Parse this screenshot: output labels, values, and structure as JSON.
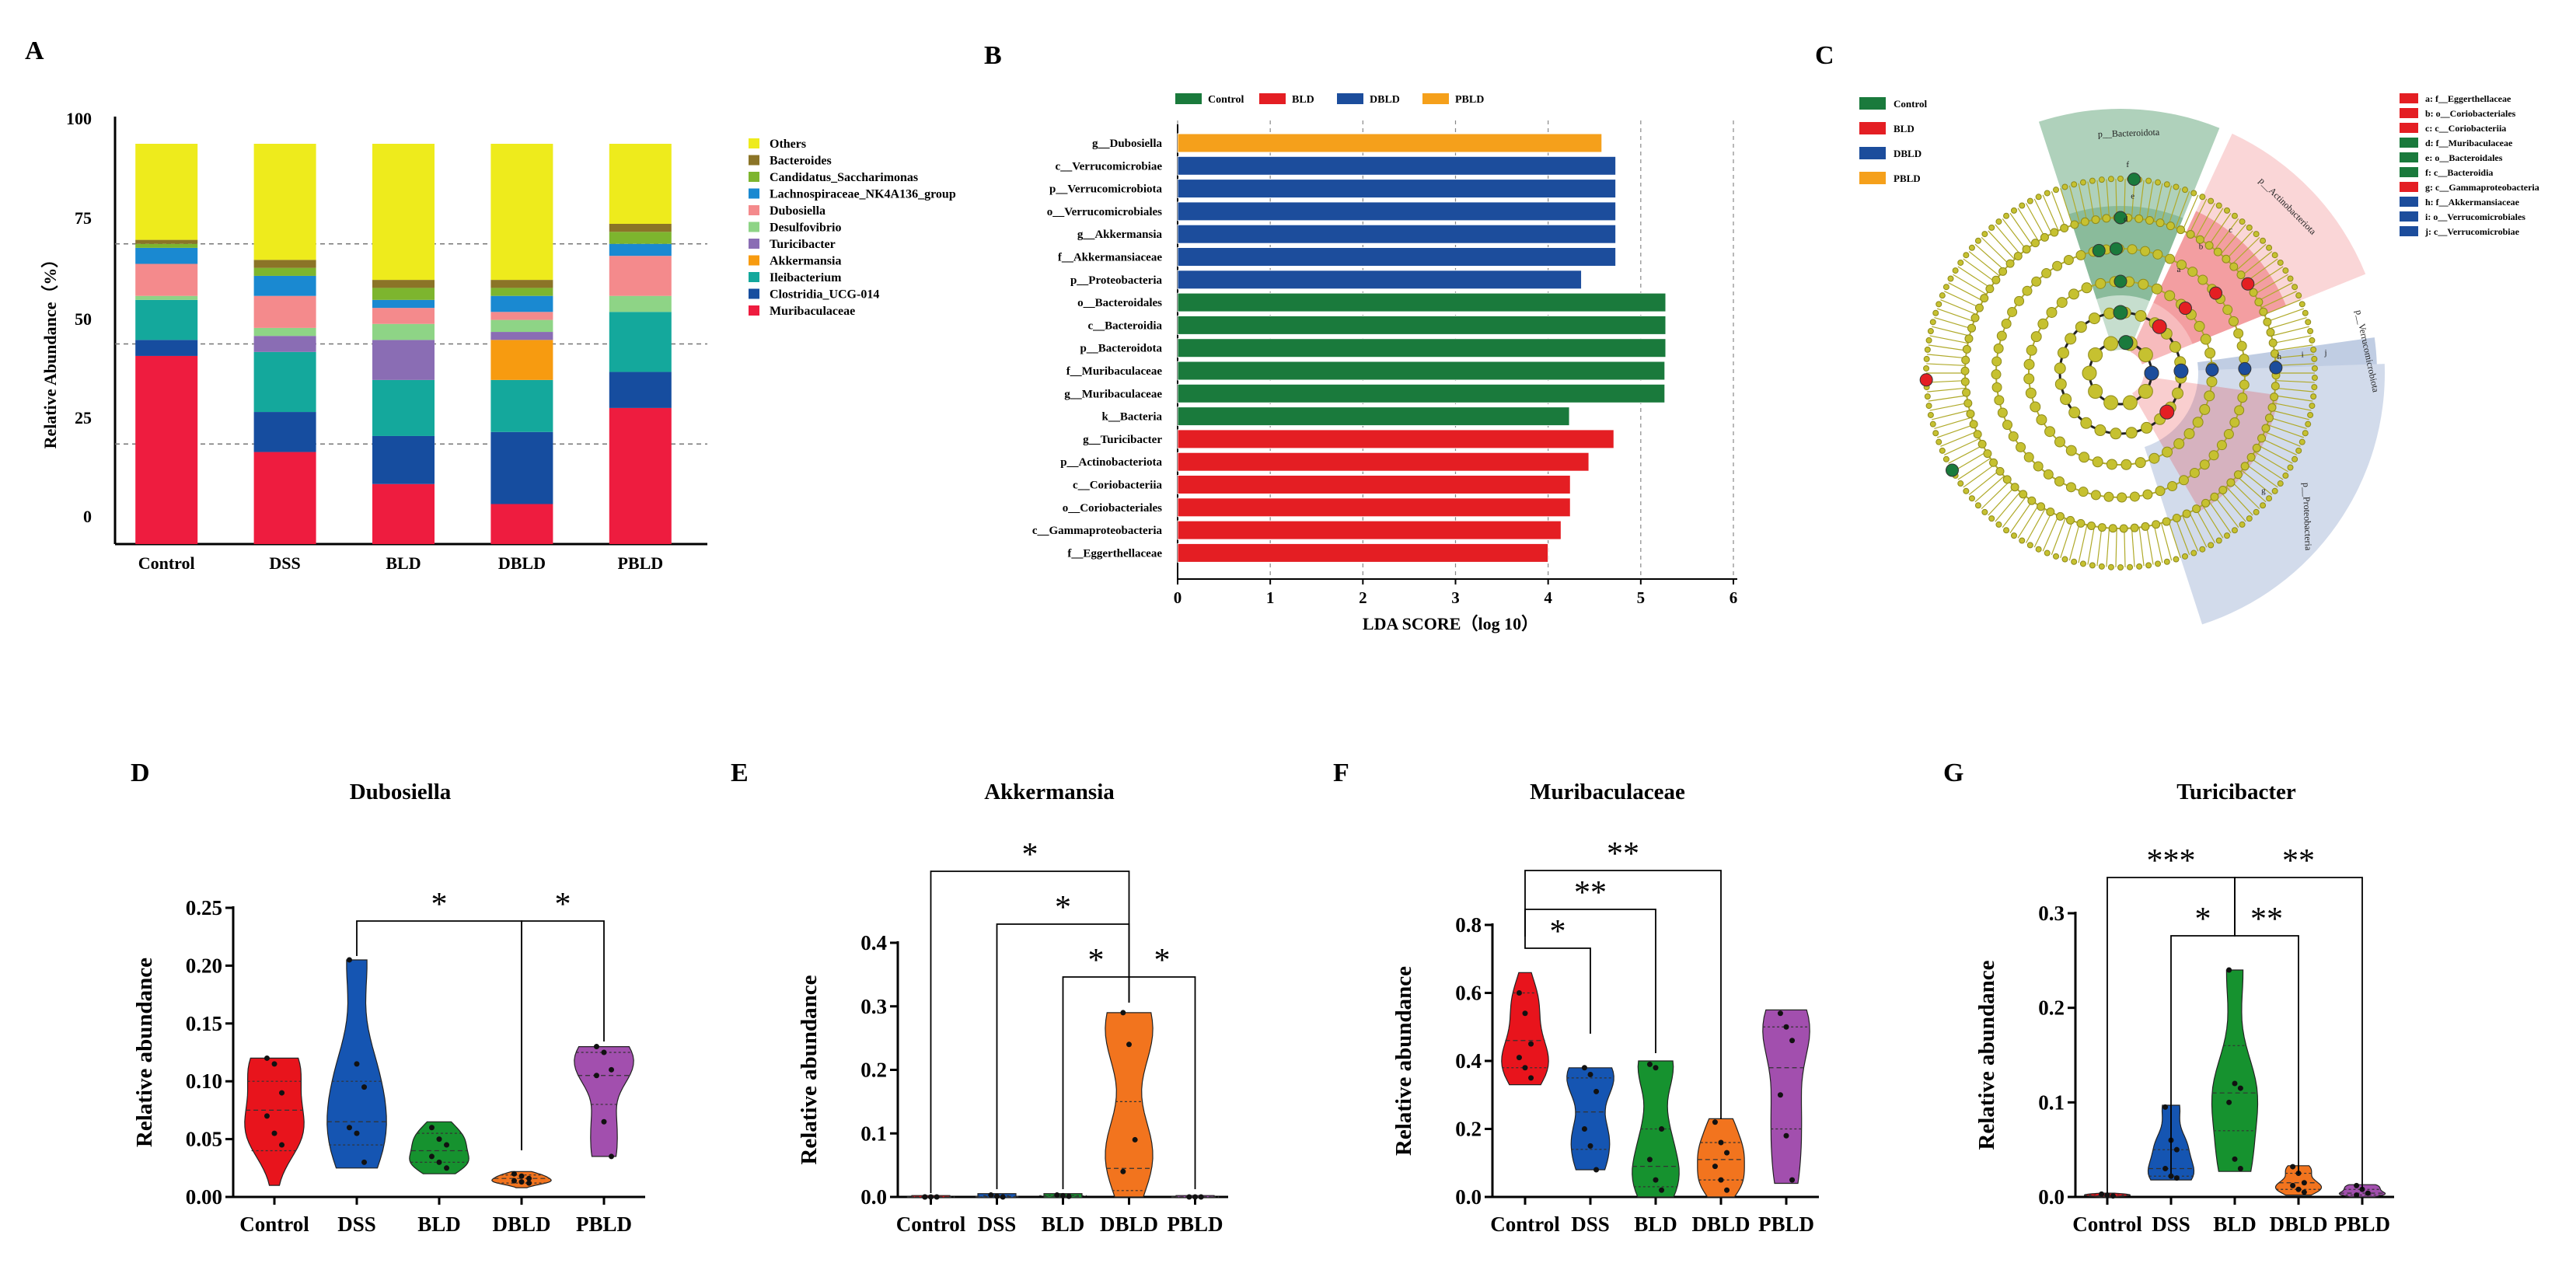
{
  "chart_data": [
    {
      "id": "A",
      "type": "stacked-bar",
      "panel_label": "A",
      "ylabel": "Relative Abundance（%）",
      "yticks": [
        0,
        25,
        50,
        75,
        100
      ],
      "ylim": [
        0,
        100
      ],
      "categories": [
        "Control",
        "DSS",
        "BLD",
        "DBLD",
        "PBLD"
      ],
      "series": [
        {
          "name": "Muribaculaceae",
          "color": "#EE1C3F",
          "values": [
            47,
            23,
            15,
            10,
            34
          ]
        },
        {
          "name": "Clostridia_UCG-014",
          "color": "#164D9F",
          "values": [
            4,
            10,
            12,
            18,
            9
          ]
        },
        {
          "name": "Ileibacterium",
          "color": "#14A89C",
          "values": [
            10,
            15,
            14,
            13,
            15
          ]
        },
        {
          "name": "Akkermansia",
          "color": "#F79B10",
          "values": [
            0,
            0,
            0,
            10,
            0
          ]
        },
        {
          "name": "Turicibacter",
          "color": "#8A6DB4",
          "values": [
            0,
            4,
            10,
            2,
            0
          ]
        },
        {
          "name": "Desulfovibrio",
          "color": "#8ED486",
          "values": [
            1,
            2,
            4,
            3,
            4
          ]
        },
        {
          "name": "Dubosiella",
          "color": "#F48A8C",
          "values": [
            8,
            8,
            4,
            2,
            10
          ]
        },
        {
          "name": "Lachnospiraceae_NK4A136_group",
          "color": "#1A89D1",
          "values": [
            4,
            5,
            2,
            4,
            3
          ]
        },
        {
          "name": "Candidatus_Saccharimonas",
          "color": "#7DB52E",
          "values": [
            1,
            2,
            3,
            2,
            3
          ]
        },
        {
          "name": "Bacteroides",
          "color": "#8B7427",
          "values": [
            1,
            2,
            2,
            2,
            2
          ]
        },
        {
          "name": "Others",
          "color": "#EEEB1C",
          "values": [
            24,
            29,
            34,
            34,
            20
          ]
        }
      ]
    },
    {
      "id": "B",
      "type": "horizontal-bar",
      "panel_label": "B",
      "xlabel": "LDA SCORE（log 10）",
      "xticks": [
        0,
        1,
        2,
        3,
        4,
        5,
        6
      ],
      "xlim": [
        0,
        6
      ],
      "legend": [
        {
          "name": "Control",
          "color": "#1A7A3C"
        },
        {
          "name": "BLD",
          "color": "#E41E23"
        },
        {
          "name": "DBLD",
          "color": "#1C4D9C"
        },
        {
          "name": "PBLD",
          "color": "#F5A01B"
        }
      ],
      "bars": [
        {
          "label": "g__Dubosiella",
          "value": 4.58,
          "group": "PBLD"
        },
        {
          "label": "c__Verrucomicrobiae",
          "value": 4.73,
          "group": "DBLD"
        },
        {
          "label": "p__Verrucomicrobiota",
          "value": 4.73,
          "group": "DBLD"
        },
        {
          "label": "o__Verrucomicrobiales",
          "value": 4.73,
          "group": "DBLD"
        },
        {
          "label": "g__Akkermansia",
          "value": 4.73,
          "group": "DBLD"
        },
        {
          "label": "f__Akkermansiaceae",
          "value": 4.73,
          "group": "DBLD"
        },
        {
          "label": "p__Proteobacteria",
          "value": 4.36,
          "group": "DBLD"
        },
        {
          "label": "o__Bacteroidales",
          "value": 5.27,
          "group": "Control"
        },
        {
          "label": "c__Bacteroidia",
          "value": 5.27,
          "group": "Control"
        },
        {
          "label": "p__Bacteroidota",
          "value": 5.27,
          "group": "Control"
        },
        {
          "label": "f__Muribaculaceae",
          "value": 5.26,
          "group": "Control"
        },
        {
          "label": "g__Muribaculaceae",
          "value": 5.26,
          "group": "Control"
        },
        {
          "label": "k__Bacteria",
          "value": 4.23,
          "group": "Control"
        },
        {
          "label": "g__Turicibacter",
          "value": 4.71,
          "group": "BLD"
        },
        {
          "label": "p__Actinobacteriota",
          "value": 4.44,
          "group": "BLD"
        },
        {
          "label": "c__Coriobacteriia",
          "value": 4.24,
          "group": "BLD"
        },
        {
          "label": "o__Coriobacteriales",
          "value": 4.24,
          "group": "BLD"
        },
        {
          "label": "c__Gammaproteobacteria",
          "value": 4.14,
          "group": "BLD"
        },
        {
          "label": "f__Eggerthellaceae",
          "value": 4.0,
          "group": "BLD"
        }
      ]
    },
    {
      "id": "C",
      "type": "cladogram",
      "panel_label": "C",
      "legend": [
        {
          "name": "Control",
          "color": "#1A7A3C"
        },
        {
          "name": "BLD",
          "color": "#E41E23"
        },
        {
          "name": "DBLD",
          "color": "#1C4D9C"
        },
        {
          "name": "PBLD",
          "color": "#F5A01B"
        }
      ],
      "clade_labels": [
        {
          "text": "a: f__Eggerthellaceae",
          "color": "#E41E23"
        },
        {
          "text": "b: o__Coriobacteriales",
          "color": "#E41E23"
        },
        {
          "text": "c: c__Coriobacteriia",
          "color": "#E41E23"
        },
        {
          "text": "d: f__Muribaculaceae",
          "color": "#1A7A3C"
        },
        {
          "text": "e: o__Bacteroidales",
          "color": "#1A7A3C"
        },
        {
          "text": "f: c__Bacteroidia",
          "color": "#1A7A3C"
        },
        {
          "text": "g: c__Gammaproteobacteria",
          "color": "#E41E23"
        },
        {
          "text": "h: f__Akkermansiaceae",
          "color": "#1C4D9C"
        },
        {
          "text": "i: o__Verrucomicrobiales",
          "color": "#1C4D9C"
        },
        {
          "text": "j: c__Verrucomicrobiae",
          "color": "#1C4D9C"
        }
      ],
      "sector_labels": [
        "p__Bacteroidota",
        "p__Actinobacteriota",
        "p__Verrucomicrobiota",
        "p__Proteobacteria"
      ],
      "node_letters": [
        "a",
        "b",
        "c",
        "d",
        "e",
        "f",
        "g",
        "h",
        "i",
        "j"
      ]
    },
    {
      "id": "D",
      "type": "violin",
      "panel_label": "D",
      "title": "Dubosiella",
      "ylabel": "Relative abundance",
      "ylim": [
        0,
        0.25
      ],
      "yticks": [
        "0.00",
        "0.05",
        "0.10",
        "0.15",
        "0.20",
        "0.25"
      ],
      "categories": [
        "Control",
        "DSS",
        "BLD",
        "DBLD",
        "PBLD"
      ],
      "colors": [
        "#E8141C",
        "#1555B2",
        "#16922F",
        "#F2741E",
        "#A24FAE"
      ],
      "groups": [
        {
          "min": 0.01,
          "max": 0.12,
          "median": 0.075,
          "q1": 0.04,
          "q3": 0.1,
          "points": [
            0.12,
            0.115,
            0.09,
            0.07,
            0.055,
            0.045
          ]
        },
        {
          "min": 0.025,
          "max": 0.205,
          "median": 0.065,
          "q1": 0.045,
          "q3": 0.1,
          "points": [
            0.205,
            0.115,
            0.095,
            0.06,
            0.055,
            0.03
          ]
        },
        {
          "min": 0.02,
          "max": 0.065,
          "median": 0.04,
          "q1": 0.03,
          "q3": 0.055,
          "points": [
            0.06,
            0.05,
            0.045,
            0.035,
            0.03,
            0.025
          ]
        },
        {
          "min": 0.008,
          "max": 0.022,
          "median": 0.016,
          "q1": 0.012,
          "q3": 0.019,
          "points": [
            0.02,
            0.018,
            0.016,
            0.014,
            0.013,
            0.012
          ]
        },
        {
          "min": 0.035,
          "max": 0.13,
          "median": 0.105,
          "q1": 0.08,
          "q3": 0.125,
          "points": [
            0.13,
            0.125,
            0.11,
            0.105,
            0.065,
            0.035
          ]
        }
      ],
      "sig": [
        {
          "from": 1,
          "to": 3,
          "label": "*",
          "level": 0
        },
        {
          "from": 3,
          "to": 4,
          "label": "*",
          "level": 0
        }
      ]
    },
    {
      "id": "E",
      "type": "violin",
      "panel_label": "E",
      "title": "Akkermansia",
      "ylabel": "Relative abundance",
      "ylim": [
        0,
        0.4
      ],
      "yticks": [
        "0.0",
        "0.1",
        "0.2",
        "0.3",
        "0.4"
      ],
      "categories": [
        "Control",
        "DSS",
        "BLD",
        "DBLD",
        "PBLD"
      ],
      "colors": [
        "#E8141C",
        "#1555B2",
        "#16922F",
        "#F2741E",
        "#A24FAE"
      ],
      "groups": [
        {
          "min": 0.0,
          "max": 0.001,
          "median": 0.0,
          "q1": 0.0,
          "q3": 0.0,
          "points": [
            0.0,
            0.0,
            0.0,
            0.0
          ]
        },
        {
          "min": 0.0,
          "max": 0.004,
          "median": 0.001,
          "q1": 0.0,
          "q3": 0.002,
          "points": [
            0.003,
            0.001,
            0.0
          ]
        },
        {
          "min": 0.0,
          "max": 0.004,
          "median": 0.001,
          "q1": 0.0,
          "q3": 0.002,
          "points": [
            0.003,
            0.002,
            0.001
          ]
        },
        {
          "min": 0.0,
          "max": 0.29,
          "median": 0.045,
          "q1": 0.01,
          "q3": 0.15,
          "points": [
            0.29,
            0.24,
            0.09,
            0.04
          ]
        },
        {
          "min": 0.0,
          "max": 0.001,
          "median": 0.0,
          "q1": 0.0,
          "q3": 0.0,
          "points": [
            0.0,
            0.0,
            0.0
          ]
        }
      ],
      "sig": [
        {
          "from": 0,
          "to": 3,
          "label": "*",
          "level": 2
        },
        {
          "from": 1,
          "to": 3,
          "label": "*",
          "level": 1
        },
        {
          "from": 2,
          "to": 3,
          "label": "*",
          "level": 0
        },
        {
          "from": 3,
          "to": 4,
          "label": "*",
          "level": 0
        }
      ]
    },
    {
      "id": "F",
      "type": "violin",
      "panel_label": "F",
      "title": "Muribaculaceae",
      "ylabel": "Relative abundance",
      "ylim": [
        0,
        0.8
      ],
      "yticks": [
        "0.0",
        "0.2",
        "0.4",
        "0.6",
        "0.8"
      ],
      "categories": [
        "Control",
        "DSS",
        "BLD",
        "DBLD",
        "PBLD"
      ],
      "colors": [
        "#E8141C",
        "#1555B2",
        "#16922F",
        "#F2741E",
        "#A24FAE"
      ],
      "groups": [
        {
          "min": 0.33,
          "max": 0.66,
          "median": 0.46,
          "q1": 0.38,
          "q3": 0.6,
          "points": [
            0.6,
            0.54,
            0.45,
            0.41,
            0.38,
            0.35
          ]
        },
        {
          "min": 0.08,
          "max": 0.38,
          "median": 0.25,
          "q1": 0.14,
          "q3": 0.35,
          "points": [
            0.38,
            0.36,
            0.31,
            0.2,
            0.15,
            0.08
          ]
        },
        {
          "min": 0.0,
          "max": 0.4,
          "median": 0.09,
          "q1": 0.03,
          "q3": 0.2,
          "points": [
            0.39,
            0.38,
            0.2,
            0.11,
            0.05,
            0.02
          ]
        },
        {
          "min": 0.0,
          "max": 0.23,
          "median": 0.11,
          "q1": 0.05,
          "q3": 0.16,
          "points": [
            0.22,
            0.16,
            0.13,
            0.09,
            0.05,
            0.02
          ]
        },
        {
          "min": 0.04,
          "max": 0.55,
          "median": 0.38,
          "q1": 0.2,
          "q3": 0.5,
          "points": [
            0.54,
            0.5,
            0.46,
            0.3,
            0.18,
            0.05
          ]
        }
      ],
      "sig": [
        {
          "from": 0,
          "to": 1,
          "label": "*",
          "level": 0
        },
        {
          "from": 0,
          "to": 2,
          "label": "**",
          "level": 1
        },
        {
          "from": 0,
          "to": 3,
          "label": "**",
          "level": 2
        }
      ]
    },
    {
      "id": "G",
      "type": "violin",
      "panel_label": "G",
      "title": "Turicibacter",
      "ylabel": "Relative abundance",
      "ylim": [
        0,
        0.3
      ],
      "yticks": [
        "0.0",
        "0.1",
        "0.2",
        "0.3"
      ],
      "categories": [
        "Control",
        "DSS",
        "BLD",
        "DBLD",
        "PBLD"
      ],
      "colors": [
        "#E8141C",
        "#1555B2",
        "#16922F",
        "#F2741E",
        "#A24FAE"
      ],
      "groups": [
        {
          "min": 0.0,
          "max": 0.004,
          "median": 0.001,
          "q1": 0.0,
          "q3": 0.002,
          "points": [
            0.003,
            0.002,
            0.001
          ]
        },
        {
          "min": 0.018,
          "max": 0.097,
          "median": 0.03,
          "q1": 0.022,
          "q3": 0.05,
          "points": [
            0.095,
            0.06,
            0.05,
            0.03,
            0.022,
            0.02
          ]
        },
        {
          "min": 0.027,
          "max": 0.24,
          "median": 0.11,
          "q1": 0.07,
          "q3": 0.16,
          "points": [
            0.24,
            0.12,
            0.115,
            0.1,
            0.04,
            0.03
          ]
        },
        {
          "min": 0.002,
          "max": 0.033,
          "median": 0.015,
          "q1": 0.008,
          "q3": 0.025,
          "points": [
            0.032,
            0.025,
            0.015,
            0.012,
            0.008,
            0.005
          ]
        },
        {
          "min": 0.0,
          "max": 0.013,
          "median": 0.004,
          "q1": 0.002,
          "q3": 0.008,
          "points": [
            0.012,
            0.008,
            0.004,
            0.002
          ]
        }
      ],
      "sig": [
        {
          "from": 0,
          "to": 2,
          "label": "***",
          "level": 1
        },
        {
          "from": 1,
          "to": 2,
          "label": "*",
          "level": 0
        },
        {
          "from": 2,
          "to": 3,
          "label": "**",
          "level": 0
        },
        {
          "from": 2,
          "to": 4,
          "label": "**",
          "level": 1
        }
      ]
    }
  ]
}
